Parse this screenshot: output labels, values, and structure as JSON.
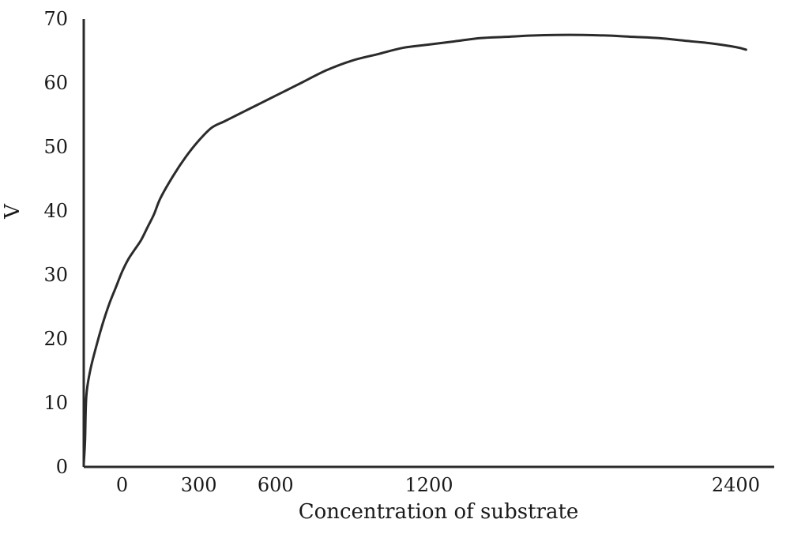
{
  "chart_data": {
    "type": "line",
    "title": "",
    "xlabel": "Concentration of substrate",
    "ylabel": "V",
    "xlim": [
      -150,
      2550
    ],
    "ylim": [
      0,
      70
    ],
    "grid": false,
    "x_ticks": [
      {
        "value": 0,
        "label": "0"
      },
      {
        "value": 300,
        "label": "300"
      },
      {
        "value": 600,
        "label": "600"
      },
      {
        "value": 1200,
        "label": "1200"
      },
      {
        "value": 2400,
        "label": "2400"
      }
    ],
    "y_ticks": [
      {
        "value": 0,
        "label": "0"
      },
      {
        "value": 10,
        "label": "10"
      },
      {
        "value": 20,
        "label": "20"
      },
      {
        "value": 30,
        "label": "30"
      },
      {
        "value": 40,
        "label": "40"
      },
      {
        "value": 50,
        "label": "50"
      },
      {
        "value": 60,
        "label": "60"
      },
      {
        "value": 70,
        "label": "70"
      }
    ],
    "series": [
      {
        "line_color": "#2b2b2b",
        "x": [
          -150,
          -145,
          -140,
          -125,
          -100,
          -75,
          -50,
          -25,
          0,
          25,
          50,
          75,
          100,
          125,
          150,
          200,
          250,
          300,
          350,
          400,
          450,
          500,
          550,
          600,
          650,
          700,
          800,
          900,
          1000,
          1100,
          1200,
          1300,
          1400,
          1500,
          1600,
          1700,
          1800,
          1900,
          2000,
          2100,
          2200,
          2300,
          2400,
          2440
        ],
        "y": [
          0.5,
          4,
          11,
          15,
          19,
          22.5,
          25.5,
          28,
          30.5,
          32.5,
          34,
          35.5,
          37.5,
          39.5,
          42,
          45.5,
          48.5,
          51,
          53,
          54,
          55,
          56,
          57,
          58,
          59,
          60,
          62,
          63.5,
          64.5,
          65.5,
          66,
          66.5,
          67,
          67.2,
          67.4,
          67.5,
          67.5,
          67.4,
          67.2,
          67,
          66.6,
          66.2,
          65.6,
          65.2
        ]
      }
    ]
  }
}
